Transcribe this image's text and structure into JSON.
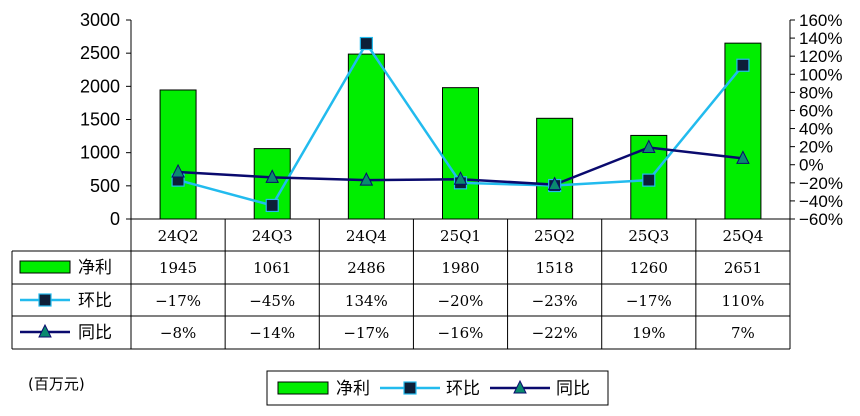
{
  "chart_data": {
    "type": "bar",
    "categories": [
      "24Q2",
      "24Q3",
      "24Q4",
      "25Q1",
      "25Q2",
      "25Q3",
      "25Q4"
    ],
    "series": [
      {
        "name": "净利",
        "kind": "bar",
        "axis": "left",
        "color": "#00ee00",
        "values": [
          1945,
          1061,
          2486,
          1980,
          1518,
          1260,
          2651
        ],
        "labels": [
          "1945",
          "1061",
          "2486",
          "1980",
          "1518",
          "1260",
          "2651"
        ]
      },
      {
        "name": "环比",
        "kind": "line",
        "axis": "right",
        "color": "#22bbee",
        "marker": "square",
        "values": [
          -17,
          -45,
          134,
          -20,
          -23,
          -17,
          110
        ],
        "labels": [
          "−17%",
          "−45%",
          "134%",
          "−20%",
          "−23%",
          "−17%",
          "110%"
        ]
      },
      {
        "name": "同比",
        "kind": "line",
        "axis": "right",
        "color": "#0a0a6e",
        "marker": "triangle",
        "values": [
          -8,
          -14,
          -17,
          -16,
          -22,
          19,
          7
        ],
        "labels": [
          "−8%",
          "−14%",
          "−17%",
          "−16%",
          "−22%",
          "19%",
          "7%"
        ]
      }
    ],
    "y_left": {
      "ylim": [
        0,
        3000
      ],
      "ticks": [
        "0",
        "500",
        "1000",
        "1500",
        "2000",
        "2500",
        "3000"
      ]
    },
    "y_right": {
      "ylim": [
        -60,
        160
      ],
      "ticks": [
        "−60%",
        "−40%",
        "−20%",
        "0%",
        "20%",
        "40%",
        "60%",
        "80%",
        "100%",
        "120%",
        "140%",
        "160%"
      ]
    },
    "unit": "(百万元)",
    "legend": {
      "position": "bottom",
      "items": [
        "净利",
        "环比",
        "同比"
      ]
    },
    "grid": false
  }
}
